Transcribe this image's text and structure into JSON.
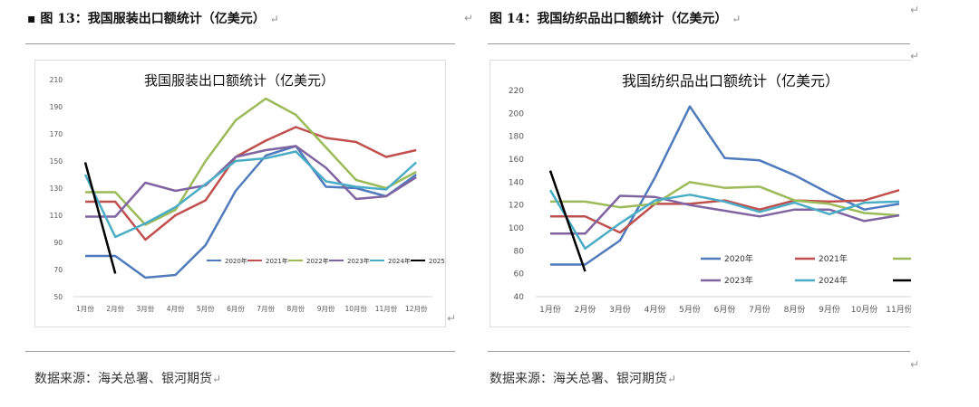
{
  "captions": {
    "left": "图 13：我国服装出口额统计（亿美元）",
    "right": "图 14：我国纺织品出口额统计（亿美元）"
  },
  "marks": {
    "return": "↵"
  },
  "sources": {
    "left": "数据来源：海关总署、银河期货",
    "right": "数据来源：海关总署、银河期货"
  },
  "chart_data": [
    {
      "type": "line",
      "title": "我国服装出口额统计（亿美元）",
      "categories": [
        "1月份",
        "2月份",
        "3月份",
        "4月份",
        "5月份",
        "6月份",
        "7月份",
        "8月份",
        "9月份",
        "10月份",
        "11月份",
        "12月份"
      ],
      "ylim": [
        50,
        210
      ],
      "yticks": [
        50,
        70,
        90,
        110,
        130,
        150,
        170,
        190,
        210
      ],
      "grid": false,
      "legend_position": "bottom-right",
      "series": [
        {
          "name": "2020年",
          "color": "#4f7bbd",
          "values": [
            80,
            80,
            64,
            66,
            88,
            128,
            154,
            161,
            131,
            130,
            124,
            140
          ]
        },
        {
          "name": "2021年",
          "color": "#c0504d",
          "values": [
            120,
            120,
            92,
            110,
            121,
            153,
            165,
            175,
            167,
            164,
            153,
            158
          ]
        },
        {
          "name": "2022年",
          "color": "#9bbb59",
          "values": [
            127,
            127,
            103,
            114,
            150,
            180,
            196,
            184,
            160,
            136,
            130,
            142
          ]
        },
        {
          "name": "2023年",
          "color": "#8064a2",
          "values": [
            109,
            109,
            134,
            128,
            132,
            153,
            158,
            161,
            145,
            122,
            124,
            138
          ]
        },
        {
          "name": "2024年",
          "color": "#4bacc6",
          "values": [
            140,
            94,
            104,
            116,
            133,
            150,
            152,
            157,
            135,
            131,
            129,
            149
          ]
        },
        {
          "name": "2025年",
          "color": "#000000",
          "values": [
            149,
            67,
            null,
            null,
            null,
            null,
            null,
            null,
            null,
            null,
            null,
            null
          ]
        }
      ]
    },
    {
      "type": "line",
      "title": "我国纺织品出口额统计（亿美元）",
      "categories": [
        "1月份",
        "2月份",
        "3月份",
        "4月份",
        "5月份",
        "6月份",
        "7月份",
        "8月份",
        "9月份",
        "10月份",
        "11月份"
      ],
      "ylim": [
        40,
        220
      ],
      "yticks": [
        40,
        60,
        80,
        100,
        120,
        140,
        160,
        180,
        200,
        220
      ],
      "grid": false,
      "legend_position": "inside-bottom",
      "series": [
        {
          "name": "2020年",
          "color": "#4f7bbd",
          "values": [
            68,
            68,
            89,
            144,
            206,
            161,
            159,
            146,
            130,
            116,
            121
          ]
        },
        {
          "name": "2021年",
          "color": "#c0504d",
          "values": [
            110,
            110,
            96,
            121,
            121,
            124,
            116,
            124,
            123,
            124,
            133
          ]
        },
        {
          "name": "",
          "color": "#9bbb59",
          "values": [
            123,
            123,
            118,
            121,
            140,
            135,
            136,
            124,
            121,
            113,
            111
          ]
        },
        {
          "name": "2023年",
          "color": "#8064a2",
          "values": [
            95,
            95,
            128,
            127,
            120,
            115,
            110,
            116,
            116,
            106,
            111
          ]
        },
        {
          "name": "2024年",
          "color": "#4bacc6",
          "values": [
            133,
            82,
            104,
            124,
            129,
            123,
            114,
            122,
            112,
            122,
            123
          ]
        },
        {
          "name": "",
          "color": "#000000",
          "values": [
            150,
            62,
            null,
            null,
            null,
            null,
            null,
            null,
            null,
            null,
            null
          ]
        }
      ]
    }
  ]
}
